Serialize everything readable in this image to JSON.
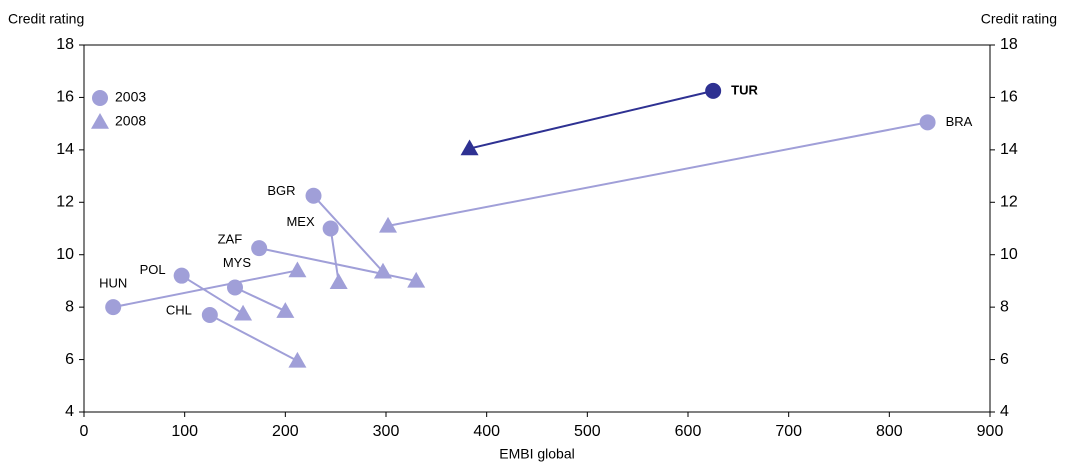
{
  "chart_data": {
    "type": "scatter",
    "y_label": "Credit rating",
    "x_label": "EMBI global",
    "labels": [
      "TUR",
      "BRA",
      "BGR",
      "MEX",
      "ZAF",
      "HUN",
      "POL",
      "MYS",
      "CHL"
    ],
    "series": [
      {
        "name": "2003",
        "marker": "circle",
        "color": "#a09fd8",
        "colors": [
          "#2e3192",
          "#a09fd8",
          "#a09fd8",
          "#a09fd8",
          "#a09fd8",
          "#a09fd8",
          "#a09fd8",
          "#a09fd8",
          "#a09fd8"
        ],
        "x": [
          625,
          838,
          228,
          245,
          174,
          29,
          97,
          150,
          125
        ],
        "values": [
          16.25,
          15.05,
          12.25,
          11.0,
          10.25,
          8.0,
          9.2,
          8.75,
          7.7
        ]
      },
      {
        "name": "2008",
        "marker": "triangle",
        "color": "#a09fd8",
        "colors": [
          "#2e3192",
          "#a09fd8",
          "#a09fd8",
          "#a09fd8",
          "#a09fd8",
          "#a09fd8",
          "#a09fd8",
          "#a09fd8",
          "#a09fd8"
        ],
        "x": [
          383,
          302,
          297,
          253,
          330,
          212,
          158,
          200,
          212
        ],
        "values": [
          14.05,
          11.1,
          9.35,
          8.95,
          9.0,
          9.4,
          7.75,
          7.85,
          5.95
        ]
      }
    ],
    "xlim": [
      0,
      900
    ],
    "xticks": [
      0,
      100,
      200,
      300,
      400,
      500,
      600,
      700,
      800,
      900
    ],
    "ylim": [
      4,
      18
    ],
    "yticks": [
      4,
      6,
      8,
      10,
      12,
      14,
      16,
      18
    ],
    "legend": "upper left"
  }
}
